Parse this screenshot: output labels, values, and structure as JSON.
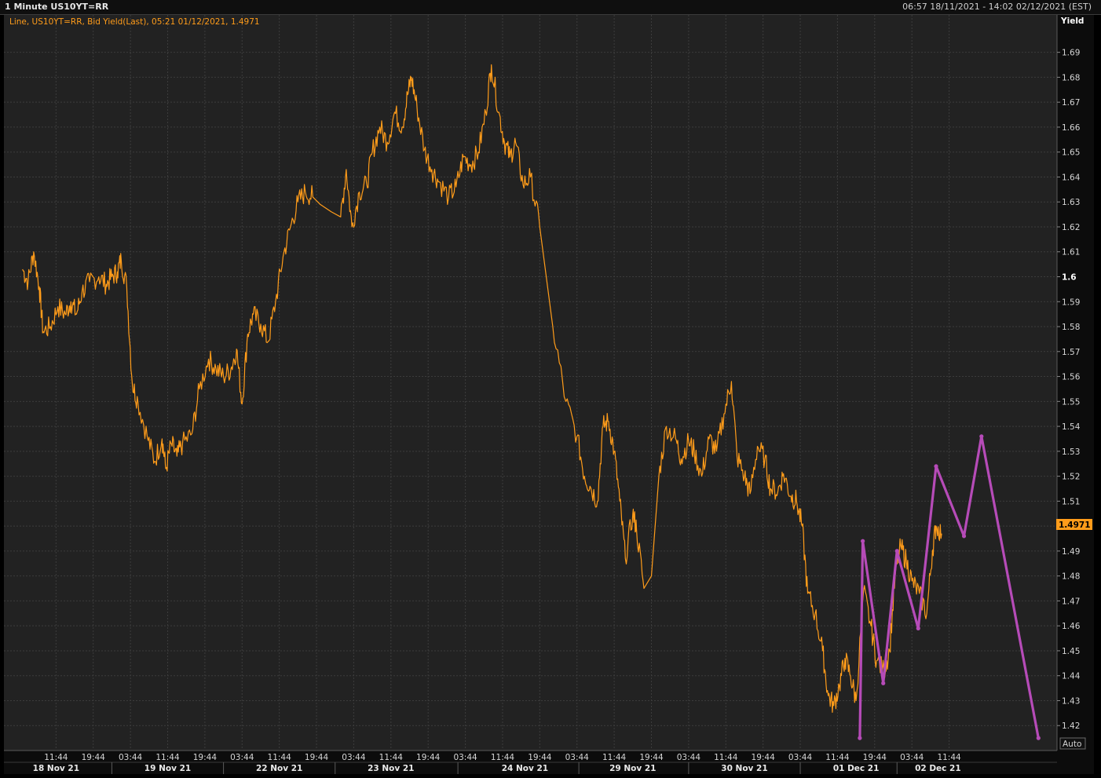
{
  "window": {
    "title": "1 Minute US10YT=RR",
    "range": "06:57 18/11/2021 - 14:02 02/12/2021 (EST)"
  },
  "legend_text": "Line, US10YT=RR, Bid Yield(Last), 05:21 01/12/2021, 1.4971",
  "auto_button": "Auto",
  "colors": {
    "background": "#222222",
    "grid": "#3c3c3c",
    "price_line": "#ff9c1a",
    "drawing": "#b64bb8",
    "last_price_box": "#ff9c1a"
  },
  "chart_data": {
    "type": "line",
    "ylabel": "Yield",
    "ylim": [
      1.41,
      1.705
    ],
    "y_ticks": [
      1.42,
      1.43,
      1.44,
      1.45,
      1.46,
      1.47,
      1.48,
      1.49,
      1.5,
      1.51,
      1.52,
      1.53,
      1.54,
      1.55,
      1.56,
      1.57,
      1.58,
      1.59,
      1.6,
      1.61,
      1.62,
      1.63,
      1.64,
      1.65,
      1.66,
      1.67,
      1.68,
      1.69
    ],
    "y_ticks_bold": [
      1.5,
      1.6
    ],
    "last_value": "1.4971",
    "x_ticks": [
      {
        "i": 0.9,
        "label": "11:44"
      },
      {
        "i": 1.9,
        "label": "19:44"
      },
      {
        "i": 2.9,
        "label": "03:44"
      },
      {
        "i": 3.9,
        "label": "11:44"
      },
      {
        "i": 4.9,
        "label": "19:44"
      },
      {
        "i": 5.9,
        "label": "03:44"
      },
      {
        "i": 6.9,
        "label": "11:44"
      },
      {
        "i": 7.9,
        "label": "19:44"
      },
      {
        "i": 8.9,
        "label": "03:44"
      },
      {
        "i": 9.9,
        "label": "11:44"
      },
      {
        "i": 10.9,
        "label": "19:44"
      },
      {
        "i": 11.9,
        "label": "03:44"
      },
      {
        "i": 12.9,
        "label": "11:44"
      },
      {
        "i": 13.9,
        "label": "19:44"
      },
      {
        "i": 14.9,
        "label": "03:44"
      },
      {
        "i": 15.9,
        "label": "11:44"
      },
      {
        "i": 16.9,
        "label": "19:44"
      },
      {
        "i": 17.9,
        "label": "03:44"
      },
      {
        "i": 18.9,
        "label": "11:44"
      },
      {
        "i": 19.9,
        "label": "19:44"
      },
      {
        "i": 20.9,
        "label": "03:44"
      },
      {
        "i": 21.9,
        "label": "11:44"
      },
      {
        "i": 22.9,
        "label": "19:44"
      },
      {
        "i": 23.9,
        "label": "03:44"
      },
      {
        "i": 24.9,
        "label": "11:44"
      }
    ],
    "day_labels": [
      {
        "i": 0.9,
        "label": "18 Nov 21"
      },
      {
        "i": 3.9,
        "label": "19 Nov 21"
      },
      {
        "i": 6.9,
        "label": "22 Nov 21"
      },
      {
        "i": 9.9,
        "label": "23 Nov 21"
      },
      {
        "i": 13.5,
        "label": "24 Nov 21"
      },
      {
        "i": 16.4,
        "label": "29 Nov 21"
      },
      {
        "i": 19.4,
        "label": "30 Nov 21"
      },
      {
        "i": 22.4,
        "label": "01 Dec 21"
      },
      {
        "i": 24.6,
        "label": "02 Dec 21"
      }
    ],
    "series": [
      {
        "type": "line",
        "points": [
          [
            0.0,
            1.603
          ],
          [
            0.15,
            1.598
          ],
          [
            0.3,
            1.61
          ],
          [
            0.45,
            1.596
          ],
          [
            0.55,
            1.578
          ],
          [
            0.75,
            1.58
          ],
          [
            0.95,
            1.588
          ],
          [
            1.15,
            1.585
          ],
          [
            1.3,
            1.59
          ],
          [
            1.45,
            1.585
          ],
          [
            1.6,
            1.594
          ],
          [
            1.8,
            1.598
          ],
          [
            2.05,
            1.6
          ],
          [
            2.25,
            1.597
          ],
          [
            2.4,
            1.6
          ],
          [
            2.55,
            1.602
          ],
          [
            2.65,
            1.607
          ],
          [
            2.8,
            1.596
          ],
          [
            2.95,
            1.557
          ],
          [
            3.1,
            1.55
          ],
          [
            3.35,
            1.536
          ],
          [
            3.55,
            1.526
          ],
          [
            3.75,
            1.535
          ],
          [
            3.85,
            1.523
          ],
          [
            4.0,
            1.533
          ],
          [
            4.15,
            1.528
          ],
          [
            4.3,
            1.533
          ],
          [
            4.55,
            1.537
          ],
          [
            4.75,
            1.555
          ],
          [
            5.0,
            1.567
          ],
          [
            5.2,
            1.563
          ],
          [
            5.4,
            1.56
          ],
          [
            5.6,
            1.563
          ],
          [
            5.75,
            1.571
          ],
          [
            5.9,
            1.549
          ],
          [
            6.05,
            1.577
          ],
          [
            6.2,
            1.585
          ],
          [
            6.4,
            1.581
          ],
          [
            6.6,
            1.574
          ],
          [
            6.8,
            1.59
          ],
          [
            7.0,
            1.608
          ],
          [
            7.2,
            1.62
          ],
          [
            7.4,
            1.63
          ],
          [
            7.6,
            1.634
          ],
          [
            7.8,
            1.632
          ],
          [
            8.0,
            1.629
          ],
          [
            8.3,
            1.626
          ],
          [
            8.55,
            1.624
          ],
          [
            8.7,
            1.643
          ],
          [
            8.85,
            1.62
          ],
          [
            9.05,
            1.634
          ],
          [
            9.25,
            1.637
          ],
          [
            9.4,
            1.65
          ],
          [
            9.6,
            1.66
          ],
          [
            9.8,
            1.654
          ],
          [
            10.0,
            1.666
          ],
          [
            10.2,
            1.66
          ],
          [
            10.35,
            1.673
          ],
          [
            10.45,
            1.68
          ],
          [
            10.6,
            1.668
          ],
          [
            10.8,
            1.651
          ],
          [
            11.0,
            1.643
          ],
          [
            11.2,
            1.638
          ],
          [
            11.45,
            1.632
          ],
          [
            11.65,
            1.636
          ],
          [
            11.85,
            1.648
          ],
          [
            12.05,
            1.645
          ],
          [
            12.25,
            1.65
          ],
          [
            12.45,
            1.666
          ],
          [
            12.6,
            1.685
          ],
          [
            12.8,
            1.666
          ],
          [
            12.95,
            1.654
          ],
          [
            13.1,
            1.648
          ],
          [
            13.25,
            1.654
          ],
          [
            13.45,
            1.637
          ],
          [
            13.65,
            1.64
          ],
          [
            13.9,
            1.62
          ],
          [
            14.25,
            1.58
          ],
          [
            14.6,
            1.55
          ],
          [
            14.9,
            1.536
          ],
          [
            15.1,
            1.52
          ],
          [
            15.25,
            1.516
          ],
          [
            15.45,
            1.51
          ],
          [
            15.6,
            1.54
          ],
          [
            15.75,
            1.542
          ],
          [
            15.9,
            1.53
          ],
          [
            16.05,
            1.51
          ],
          [
            16.2,
            1.487
          ],
          [
            16.4,
            1.505
          ],
          [
            16.5,
            1.499
          ],
          [
            16.7,
            1.475
          ],
          [
            16.9,
            1.48
          ],
          [
            17.1,
            1.52
          ],
          [
            17.3,
            1.54
          ],
          [
            17.55,
            1.535
          ],
          [
            17.7,
            1.527
          ],
          [
            17.9,
            1.534
          ],
          [
            18.05,
            1.53
          ],
          [
            18.25,
            1.52
          ],
          [
            18.45,
            1.535
          ],
          [
            18.65,
            1.53
          ],
          [
            18.85,
            1.545
          ],
          [
            19.05,
            1.558
          ],
          [
            19.2,
            1.528
          ],
          [
            19.4,
            1.52
          ],
          [
            19.55,
            1.513
          ],
          [
            19.75,
            1.532
          ],
          [
            19.95,
            1.527
          ],
          [
            20.1,
            1.515
          ],
          [
            20.3,
            1.514
          ],
          [
            20.45,
            1.521
          ],
          [
            20.65,
            1.512
          ],
          [
            20.8,
            1.51
          ],
          [
            20.95,
            1.5
          ],
          [
            21.1,
            1.473
          ],
          [
            21.3,
            1.465
          ],
          [
            21.5,
            1.45
          ],
          [
            21.65,
            1.432
          ],
          [
            21.8,
            1.428
          ],
          [
            21.95,
            1.436
          ],
          [
            22.1,
            1.447
          ],
          [
            22.25,
            1.44
          ],
          [
            22.4,
            1.43
          ],
          [
            22.6,
            1.474
          ],
          [
            22.8,
            1.46
          ],
          [
            22.95,
            1.446
          ],
          [
            23.15,
            1.442
          ],
          [
            23.3,
            1.45
          ],
          [
            23.45,
            1.48
          ],
          [
            23.6,
            1.492
          ],
          [
            23.75,
            1.486
          ],
          [
            23.9,
            1.478
          ],
          [
            24.1,
            1.473
          ],
          [
            24.3,
            1.465
          ],
          [
            24.45,
            1.49
          ],
          [
            24.55,
            1.5
          ],
          [
            24.7,
            1.497
          ]
        ]
      },
      {
        "type": "drawing",
        "points": [
          [
            22.5,
            1.415
          ],
          [
            22.58,
            1.494
          ],
          [
            23.13,
            1.437
          ],
          [
            23.5,
            1.49
          ],
          [
            24.07,
            1.459
          ],
          [
            24.55,
            1.524
          ],
          [
            25.3,
            1.496
          ],
          [
            25.77,
            1.536
          ],
          [
            27.3,
            1.415
          ]
        ]
      }
    ]
  }
}
